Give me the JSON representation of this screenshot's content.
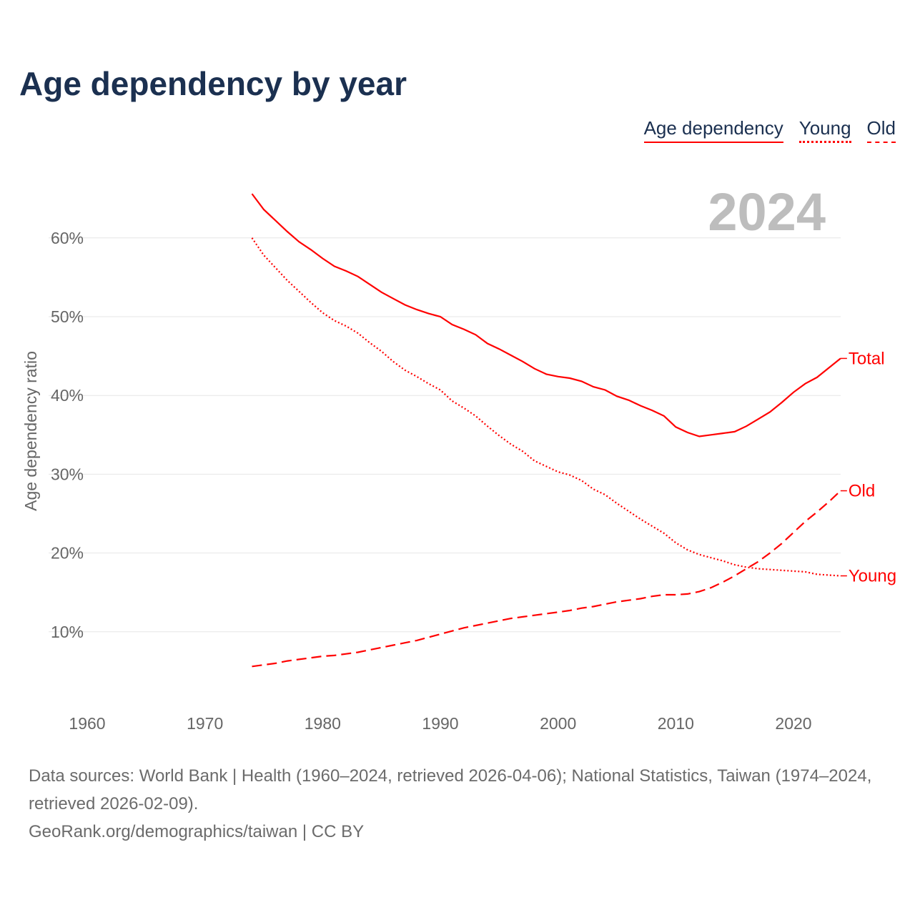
{
  "title": "Age dependency by year",
  "legend": [
    "Age dependency",
    "Young",
    "Old"
  ],
  "footer": {
    "sources": "Data sources: World Bank | Health (1960–2024, retrieved 2026-04-06); National Statistics, Taiwan (1974–2024, retrieved 2026-02-09).",
    "credit": "GeoRank.org/demographics/taiwan | CC BY"
  },
  "chart_data": {
    "type": "line",
    "title": "Age dependency by year",
    "year_label": "2024",
    "xlabel": "",
    "ylabel": "Age dependency ratio",
    "xlim": [
      1960,
      2024
    ],
    "ylim": [
      0,
      65
    ],
    "xticks": [
      1960,
      1970,
      1980,
      1990,
      2000,
      2010,
      2020
    ],
    "yticks": [
      10,
      20,
      30,
      40,
      50,
      60
    ],
    "ytick_labels": [
      "10%",
      "20%",
      "30%",
      "40%",
      "50%",
      "60%"
    ],
    "grid": true,
    "legend_position": "top-right",
    "color": "#ff0000",
    "x_start": 1974,
    "series": [
      {
        "name": "Total",
        "style": "solid",
        "values": [
          65.6,
          63.6,
          62.2,
          60.8,
          59.5,
          58.5,
          57.4,
          56.4,
          55.8,
          55.1,
          54.1,
          53.1,
          52.3,
          51.5,
          50.9,
          50.4,
          50.0,
          49.0,
          48.4,
          47.7,
          46.6,
          45.9,
          45.1,
          44.3,
          43.4,
          42.7,
          42.4,
          42.2,
          41.8,
          41.1,
          40.7,
          39.9,
          39.4,
          38.7,
          38.1,
          37.4,
          36.0,
          35.3,
          34.8,
          35.0,
          35.2,
          35.4,
          36.1,
          37.0,
          37.9,
          39.1,
          40.4,
          41.5,
          42.3,
          43.5,
          44.7
        ]
      },
      {
        "name": "Young",
        "style": "dotted",
        "values": [
          60.0,
          57.8,
          56.2,
          54.6,
          53.2,
          51.8,
          50.5,
          49.5,
          48.8,
          47.9,
          46.7,
          45.6,
          44.3,
          43.2,
          42.4,
          41.5,
          40.7,
          39.3,
          38.4,
          37.4,
          36.1,
          34.9,
          33.8,
          32.9,
          31.7,
          31.0,
          30.3,
          29.9,
          29.2,
          28.1,
          27.4,
          26.3,
          25.3,
          24.3,
          23.4,
          22.5,
          21.3,
          20.4,
          19.8,
          19.4,
          19.0,
          18.5,
          18.2,
          18.0,
          17.9,
          17.8,
          17.7,
          17.6,
          17.3,
          17.2,
          17.1
        ]
      },
      {
        "name": "Old",
        "style": "dashed",
        "values": [
          5.6,
          5.8,
          6.0,
          6.3,
          6.5,
          6.7,
          6.9,
          7.0,
          7.2,
          7.4,
          7.7,
          8.0,
          8.3,
          8.6,
          8.9,
          9.3,
          9.7,
          10.1,
          10.5,
          10.8,
          11.1,
          11.4,
          11.7,
          11.9,
          12.1,
          12.3,
          12.5,
          12.7,
          13.0,
          13.2,
          13.5,
          13.8,
          14.0,
          14.2,
          14.5,
          14.7,
          14.7,
          14.8,
          15.1,
          15.6,
          16.3,
          17.1,
          18.0,
          18.9,
          20.0,
          21.2,
          22.6,
          24.0,
          25.2,
          26.5,
          27.9
        ]
      }
    ]
  }
}
